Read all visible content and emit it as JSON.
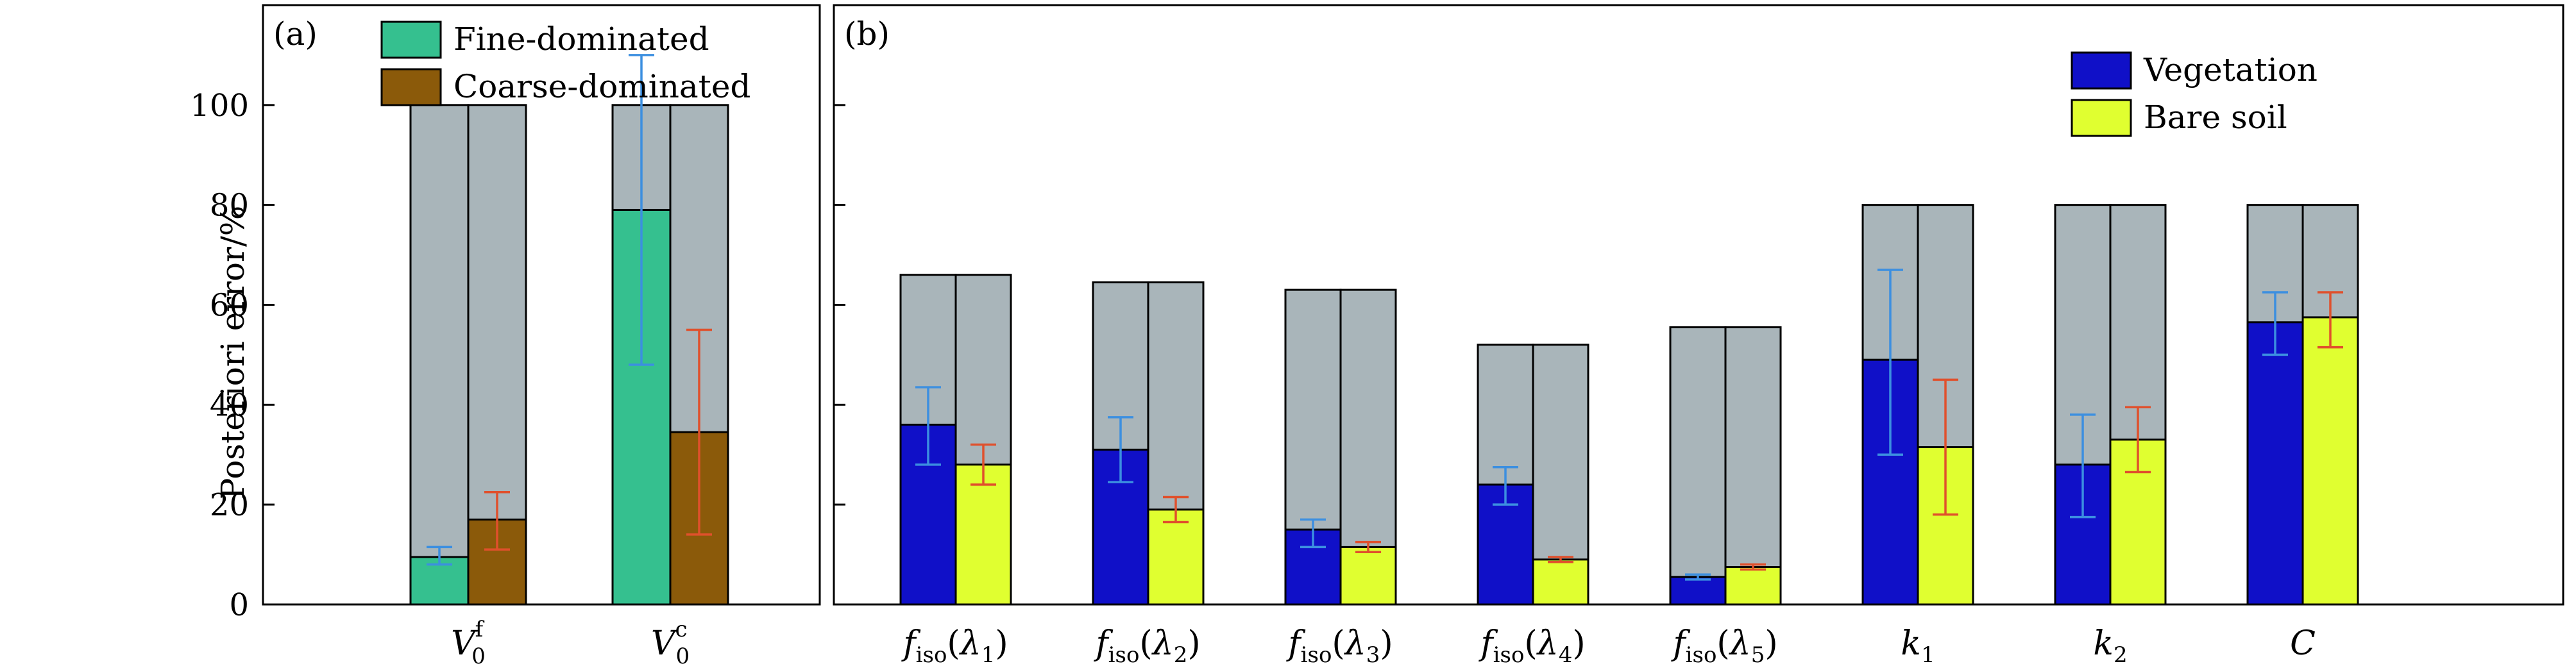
{
  "ylabel": "Posteriori error/%",
  "colors": {
    "prior": "#a9b5ba",
    "fine": "#35c08f",
    "coarse": "#8b5a0a",
    "vegetation": "#1010c8",
    "bare": "#e0ff30",
    "err_a": "#3c8fe0",
    "err_b": "#e0502c"
  },
  "chart_data": [
    {
      "type": "bar",
      "panel_label": "(a)",
      "categories": [
        {
          "base": "V",
          "sub": "0",
          "sup": "f"
        },
        {
          "base": "V",
          "sub": "0",
          "sup": "c"
        }
      ],
      "ylim": [
        0,
        120
      ],
      "yticks": [
        0,
        20,
        40,
        60,
        80,
        100
      ],
      "legend": {
        "position": "top-left",
        "entries": [
          "Fine-dominated",
          "Coarse-dominated"
        ]
      },
      "series": [
        {
          "name": "Fine-dominated",
          "prior": [
            100,
            100
          ],
          "values": [
            9.5,
            79
          ],
          "err_low": [
            8,
            48
          ],
          "err_high": [
            11.5,
            110
          ]
        },
        {
          "name": "Coarse-dominated",
          "prior": [
            100,
            100
          ],
          "values": [
            17,
            34.5
          ],
          "err_low": [
            11,
            14
          ],
          "err_high": [
            22.5,
            55
          ]
        }
      ]
    },
    {
      "type": "bar",
      "panel_label": "(b)",
      "categories": [
        {
          "base": "f",
          "sub": "iso",
          "arg": "λ",
          "argsub": "1"
        },
        {
          "base": "f",
          "sub": "iso",
          "arg": "λ",
          "argsub": "2"
        },
        {
          "base": "f",
          "sub": "iso",
          "arg": "λ",
          "argsub": "3"
        },
        {
          "base": "f",
          "sub": "iso",
          "arg": "λ",
          "argsub": "4"
        },
        {
          "base": "f",
          "sub": "iso",
          "arg": "λ",
          "argsub": "5"
        },
        {
          "base": "k",
          "sub": "1"
        },
        {
          "base": "k",
          "sub": "2"
        },
        {
          "base": "C"
        }
      ],
      "ylim": [
        0,
        120
      ],
      "yticks": [
        0,
        20,
        40,
        60,
        80,
        100
      ],
      "legend": {
        "position": "top-right",
        "entries": [
          "Vegetation",
          "Bare soil"
        ]
      },
      "series": [
        {
          "name": "Vegetation",
          "prior": [
            66,
            64.5,
            63,
            52,
            55.5,
            80,
            80,
            80
          ],
          "values": [
            36,
            31,
            15,
            24,
            5.5,
            49,
            28,
            56.5
          ],
          "err_low": [
            28,
            24.5,
            11.5,
            20,
            5,
            30,
            17.5,
            50
          ],
          "err_high": [
            43.5,
            37.5,
            17,
            27.5,
            6,
            67,
            38,
            62.5
          ]
        },
        {
          "name": "Bare soil",
          "prior": [
            66,
            64.5,
            63,
            52,
            55.5,
            80,
            80,
            80
          ],
          "values": [
            28,
            19,
            11.5,
            9,
            7.5,
            31.5,
            33,
            57.5
          ],
          "err_low": [
            24,
            16.5,
            10.5,
            8.5,
            7,
            18,
            26.5,
            51.5
          ],
          "err_high": [
            32,
            21.5,
            12.5,
            9.5,
            8,
            45,
            39.5,
            62.5
          ]
        }
      ]
    }
  ]
}
